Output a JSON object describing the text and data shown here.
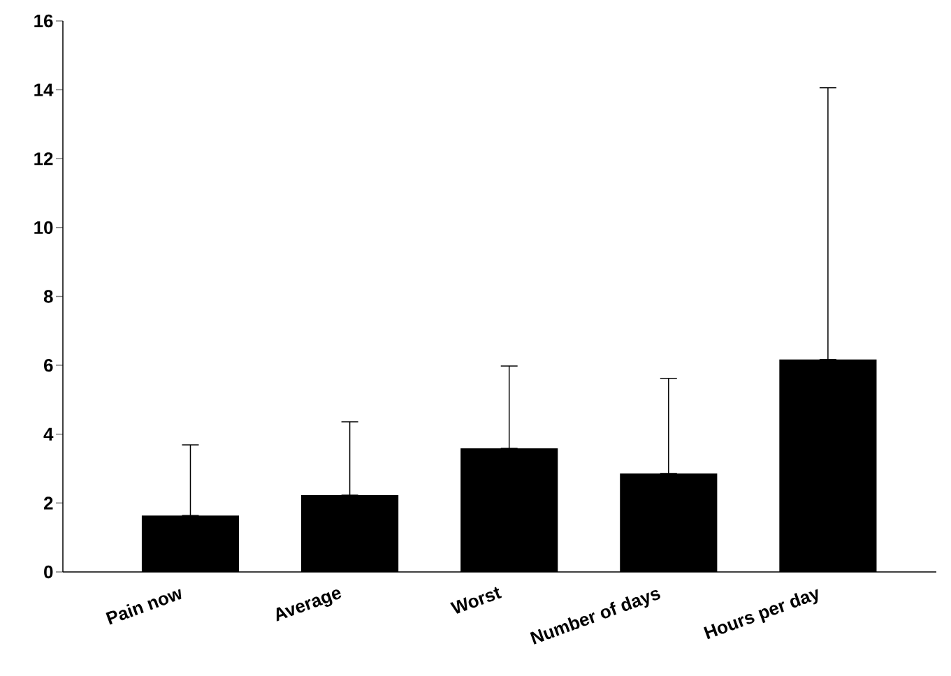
{
  "chart_data": {
    "type": "bar",
    "categories": [
      "Pain now",
      "Average",
      "Worst",
      "Number of days",
      "Hours per day"
    ],
    "values": [
      1.64,
      2.23,
      3.59,
      2.86,
      6.17
    ],
    "errors": [
      [
        1.64,
        3.69
      ],
      [
        2.23,
        4.36
      ],
      [
        3.59,
        5.98
      ],
      [
        2.86,
        5.62
      ],
      [
        6.17,
        14.06
      ]
    ],
    "color": "#000000",
    "ylim": [
      0,
      16
    ],
    "yticks": [
      0,
      2,
      4,
      6,
      8,
      10,
      12,
      14,
      16
    ],
    "grid": false
  }
}
